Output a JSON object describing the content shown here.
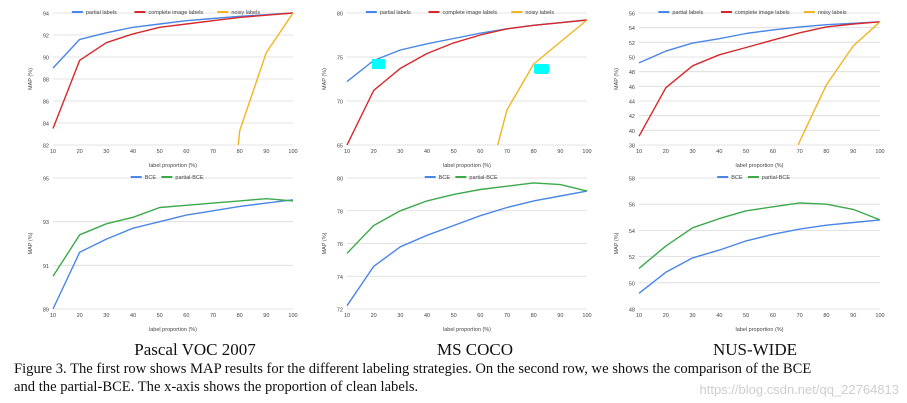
{
  "chart_data": [
    {
      "id": "voc-top",
      "type": "line",
      "title": "",
      "xlabel": "label proportion (%)",
      "ylabel": "MAP (%)",
      "xlim": [
        10,
        100
      ],
      "ylim": [
        82,
        94
      ],
      "xticks": [
        "10",
        "20",
        "30",
        "40",
        "50",
        "60",
        "70",
        "80",
        "90",
        "100"
      ],
      "yticks": [
        "82",
        "84",
        "86",
        "88",
        "90",
        "92",
        "94"
      ],
      "legend": "top-center",
      "series": [
        {
          "name": "partial labels",
          "color": "#4a86e8",
          "x": [
            10,
            20,
            30,
            40,
            50,
            60,
            70,
            80,
            90,
            100
          ],
          "y": [
            89.0,
            91.6,
            92.2,
            92.7,
            93.0,
            93.3,
            93.5,
            93.7,
            93.85,
            94.0
          ]
        },
        {
          "name": "complete image labels",
          "color": "#d7282c",
          "x": [
            10,
            20,
            30,
            40,
            50,
            60,
            70,
            80,
            90,
            100
          ],
          "y": [
            83.5,
            89.7,
            91.3,
            92.1,
            92.7,
            93.0,
            93.3,
            93.6,
            93.8,
            94.0
          ]
        },
        {
          "name": "noisy labels",
          "color": "#f1b520",
          "x": [
            79.5,
            80,
            90,
            100
          ],
          "y": [
            82.0,
            83.3,
            90.4,
            94.0
          ]
        }
      ]
    },
    {
      "id": "coco-top",
      "type": "line",
      "title": "",
      "xlabel": "label proportion (%)",
      "ylabel": "MAP (%)",
      "xlim": [
        10,
        100
      ],
      "ylim": [
        65,
        80
      ],
      "xticks": [
        "10",
        "20",
        "30",
        "40",
        "50",
        "60",
        "70",
        "80",
        "90",
        "100"
      ],
      "yticks": [
        "65",
        "70",
        "75",
        "80"
      ],
      "legend": "top-center",
      "series": [
        {
          "name": "partial labels",
          "color": "#4a86e8",
          "x": [
            10,
            20,
            30,
            40,
            50,
            60,
            70,
            80,
            90,
            100
          ],
          "y": [
            72.2,
            74.6,
            75.8,
            76.5,
            77.1,
            77.7,
            78.2,
            78.6,
            78.9,
            79.2
          ]
        },
        {
          "name": "complete image labels",
          "color": "#d7282c",
          "x": [
            10,
            20,
            30,
            40,
            50,
            60,
            70,
            80,
            90,
            100
          ],
          "y": [
            65.0,
            71.2,
            73.7,
            75.4,
            76.6,
            77.5,
            78.2,
            78.6,
            78.9,
            79.2
          ]
        },
        {
          "name": "noisy labels",
          "color": "#f1b520",
          "x": [
            66.5,
            70,
            80,
            90,
            100
          ],
          "y": [
            65.0,
            69.0,
            74.2,
            76.7,
            79.2
          ]
        }
      ]
    },
    {
      "id": "nus-top",
      "type": "line",
      "title": "",
      "xlabel": "label proportion (%)",
      "ylabel": "MAP (%)",
      "xlim": [
        10,
        100
      ],
      "ylim": [
        38,
        56
      ],
      "xticks": [
        "10",
        "20",
        "30",
        "40",
        "50",
        "60",
        "70",
        "80",
        "90",
        "100"
      ],
      "yticks": [
        "38",
        "40",
        "42",
        "44",
        "46",
        "48",
        "50",
        "52",
        "54",
        "56"
      ],
      "legend": "top-center",
      "series": [
        {
          "name": "partial labels",
          "color": "#4a86e8",
          "x": [
            10,
            20,
            30,
            40,
            50,
            60,
            70,
            80,
            90,
            100
          ],
          "y": [
            49.2,
            50.8,
            51.9,
            52.5,
            53.2,
            53.7,
            54.1,
            54.4,
            54.6,
            54.8
          ]
        },
        {
          "name": "complete image labels",
          "color": "#d7282c",
          "x": [
            10,
            20,
            30,
            40,
            50,
            60,
            70,
            80,
            90,
            100
          ],
          "y": [
            39.2,
            45.8,
            48.8,
            50.3,
            51.3,
            52.3,
            53.3,
            54.1,
            54.5,
            54.8
          ]
        },
        {
          "name": "noisy labels",
          "color": "#f1b520",
          "x": [
            69.5,
            70,
            80,
            90,
            100
          ],
          "y": [
            38.0,
            38.5,
            46.2,
            51.5,
            54.8
          ]
        }
      ]
    },
    {
      "id": "voc-bottom",
      "type": "line",
      "title": "",
      "xlabel": "label proportion (%)",
      "ylabel": "MAP (%)",
      "xlim": [
        10,
        100
      ],
      "ylim": [
        89,
        95
      ],
      "xticks": [
        "10",
        "20",
        "30",
        "40",
        "50",
        "60",
        "70",
        "80",
        "90",
        "100"
      ],
      "yticks": [
        "89",
        "91",
        "93",
        "95"
      ],
      "legend": "top-center",
      "series": [
        {
          "name": "BCE",
          "color": "#4a86e8",
          "x": [
            10,
            20,
            30,
            40,
            50,
            60,
            70,
            80,
            90,
            100
          ],
          "y": [
            89.0,
            91.6,
            92.2,
            92.7,
            93.0,
            93.3,
            93.5,
            93.7,
            93.85,
            94.0
          ]
        },
        {
          "name": "partial-BCE",
          "color": "#3ca94a",
          "x": [
            10,
            20,
            30,
            40,
            50,
            60,
            70,
            80,
            90,
            100
          ],
          "y": [
            90.5,
            92.4,
            92.9,
            93.2,
            93.65,
            93.75,
            93.85,
            93.95,
            94.05,
            93.95
          ]
        }
      ]
    },
    {
      "id": "coco-bottom",
      "type": "line",
      "title": "",
      "xlabel": "label proportion (%)",
      "ylabel": "MAP (%)",
      "xlim": [
        10,
        100
      ],
      "ylim": [
        72,
        80
      ],
      "xticks": [
        "10",
        "20",
        "30",
        "40",
        "50",
        "60",
        "70",
        "80",
        "90",
        "100"
      ],
      "yticks": [
        "72",
        "74",
        "76",
        "78",
        "80"
      ],
      "legend": "top-center",
      "series": [
        {
          "name": "BCE",
          "color": "#4a86e8",
          "x": [
            10,
            20,
            30,
            40,
            50,
            60,
            70,
            80,
            90,
            100
          ],
          "y": [
            72.2,
            74.6,
            75.8,
            76.5,
            77.1,
            77.7,
            78.2,
            78.6,
            78.9,
            79.2
          ]
        },
        {
          "name": "partial-BCE",
          "color": "#3ca94a",
          "x": [
            10,
            20,
            30,
            40,
            50,
            60,
            70,
            80,
            90,
            100
          ],
          "y": [
            75.4,
            77.1,
            78.0,
            78.6,
            79.0,
            79.3,
            79.5,
            79.7,
            79.6,
            79.2
          ]
        }
      ]
    },
    {
      "id": "nus-bottom",
      "type": "line",
      "title": "",
      "xlabel": "label proportion (%)",
      "ylabel": "MAP (%)",
      "xlim": [
        10,
        100
      ],
      "ylim": [
        48,
        58
      ],
      "xticks": [
        "10",
        "20",
        "30",
        "40",
        "50",
        "60",
        "70",
        "80",
        "90",
        "100"
      ],
      "yticks": [
        "48",
        "50",
        "52",
        "54",
        "56",
        "58"
      ],
      "legend": "top-center",
      "series": [
        {
          "name": "BCE",
          "color": "#4a86e8",
          "x": [
            10,
            20,
            30,
            40,
            50,
            60,
            70,
            80,
            90,
            100
          ],
          "y": [
            49.2,
            50.8,
            51.9,
            52.5,
            53.2,
            53.7,
            54.1,
            54.4,
            54.6,
            54.8
          ]
        },
        {
          "name": "partial-BCE",
          "color": "#3ca94a",
          "x": [
            10,
            20,
            30,
            40,
            50,
            60,
            70,
            80,
            90,
            100
          ],
          "y": [
            51.1,
            52.8,
            54.2,
            54.9,
            55.5,
            55.8,
            56.1,
            56.0,
            55.6,
            54.8
          ]
        }
      ]
    }
  ],
  "column_labels": [
    "Pascal VOC 2007",
    "MS COCO",
    "NUS-WIDE"
  ],
  "caption": {
    "line1": "Figure 3. The first row shows MAP results for the different labeling strategies. On the second row, we shows the comparison of the BCE",
    "line2": "and the partial-BCE. The x-axis shows the proportion of clean labels."
  },
  "watermark": "https://blog.csdn.net/qq_22764813",
  "colors": {
    "grid": "#dadada",
    "axis_text": "#444444",
    "marker": "#00ffff"
  }
}
